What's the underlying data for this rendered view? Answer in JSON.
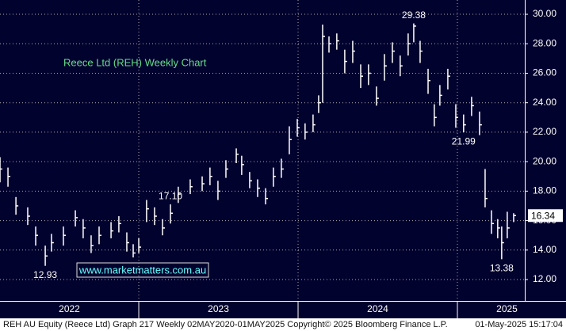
{
  "chart_data": {
    "type": "ohlc",
    "title": "Reece Ltd (REH) Weekly Chart",
    "watermark": "www.marketmatters.com.au",
    "footer_left": "REH AU Equity (Reece Ltd) Graph 217  Weekly 02MAY2020-01MAY2025  Copyright© 2025 Bloomberg Finance L.P.",
    "footer_right": "01-May-2025 15:17:04",
    "color": "#ffffff",
    "grid": true,
    "xlim": [
      2022.129,
      2025.423
    ],
    "xticks": [
      2022,
      2023,
      2024,
      2025
    ],
    "ylim": [
      10.55,
      30.97
    ],
    "yticks": [
      {
        "value": 12,
        "label": "12.00"
      },
      {
        "value": 14,
        "label": "14.00"
      },
      {
        "value": 16,
        "label": "16.00"
      },
      {
        "value": 18,
        "label": "18.00"
      },
      {
        "value": 20,
        "label": "20.00"
      },
      {
        "value": 22,
        "label": "22.00"
      },
      {
        "value": 24,
        "label": "24.00"
      },
      {
        "value": 26,
        "label": "26.00"
      },
      {
        "value": 28,
        "label": "28.00"
      },
      {
        "value": 30,
        "label": "30.00"
      }
    ],
    "x": [
      2022.129,
      2022.179,
      2022.229,
      2022.303,
      2022.353,
      2022.413,
      2022.452,
      2022.527,
      2022.602,
      2022.651,
      2022.701,
      2022.751,
      2022.826,
      2022.875,
      2022.925,
      2022.965,
      2023.0,
      2023.049,
      2023.099,
      2023.149,
      2023.199,
      2023.248,
      2023.323,
      2023.398,
      2023.447,
      2023.497,
      2023.547,
      2023.612,
      2023.646,
      2023.696,
      2023.746,
      2023.796,
      2023.845,
      2023.895,
      2023.945,
      2023.995,
      2024.044,
      2024.094,
      2024.129,
      2024.154,
      2024.194,
      2024.243,
      2024.293,
      2024.343,
      2024.393,
      2024.442,
      2024.492,
      2024.542,
      2024.592,
      2024.641,
      2024.691,
      2024.726,
      2024.766,
      2024.816,
      2024.855,
      2024.89,
      2024.94,
      2024.99,
      2025.039,
      2025.089,
      2025.139,
      2025.174,
      2025.214,
      2025.253,
      2025.278,
      2025.313,
      2025.353
    ],
    "high": [
      20.3,
      19.6,
      17.6,
      16.9,
      15.6,
      14.3,
      15.1,
      15.6,
      16.7,
      16.1,
      15.0,
      15.6,
      15.9,
      16.3,
      15.2,
      14.4,
      14.8,
      17.4,
      16.9,
      16.1,
      17.1,
      18.3,
      18.8,
      19.0,
      19.6,
      18.7,
      20.1,
      20.9,
      20.4,
      19.3,
      18.8,
      18.2,
      19.6,
      20.2,
      22.4,
      22.9,
      22.6,
      23.2,
      24.5,
      29.3,
      28.5,
      28.7,
      27.6,
      28.2,
      26.6,
      26.6,
      25.1,
      27.3,
      28.1,
      27.2,
      28.7,
      29.38,
      28.2,
      26.3,
      23.9,
      25.2,
      26.3,
      23.9,
      23.2,
      24.4,
      23.4,
      19.5,
      16.7,
      16.1,
      15.6,
      16.6,
      16.5
    ],
    "low": [
      18.6,
      18.3,
      16.4,
      15.7,
      14.3,
      12.93,
      13.9,
      14.3,
      15.6,
      14.8,
      13.8,
      14.4,
      14.8,
      15.2,
      13.9,
      13.5,
      13.8,
      15.9,
      15.7,
      15.0,
      15.8,
      17.2,
      17.8,
      18.0,
      18.4,
      17.4,
      18.9,
      19.9,
      19.1,
      18.2,
      17.6,
      17.1,
      18.3,
      18.9,
      20.5,
      21.7,
      21.5,
      22.0,
      23.3,
      24.0,
      27.4,
      27.6,
      26.0,
      26.7,
      25.0,
      25.2,
      23.8,
      25.5,
      26.7,
      25.8,
      27.2,
      28.1,
      26.7,
      24.6,
      22.4,
      23.8,
      24.9,
      22.3,
      21.99,
      23.1,
      21.8,
      16.9,
      15.1,
      14.8,
      13.38,
      14.8,
      15.9
    ],
    "close": [
      19.5,
      19,
      17,
      16.3,
      15,
      13.6,
      14.5,
      15,
      16.2,
      15.5,
      14.3,
      15,
      15.3,
      15.8,
      14.5,
      13.8,
      14.2,
      16.8,
      16.3,
      15.5,
      16.5,
      17.8,
      18.3,
      18.5,
      19.0,
      18.0,
      19.5,
      20.5,
      19.8,
      18.7,
      18.2,
      17.5,
      19.0,
      19.5,
      21.5,
      22.3,
      22.0,
      22.5,
      24,
      28.5,
      28.0,
      28.2,
      26.8,
      27.5,
      25.8,
      26,
      24.3,
      26.5,
      27.5,
      26.5,
      28,
      29.2,
      27.5,
      25.5,
      23,
      24.5,
      25.8,
      23,
      22.5,
      23.8,
      22.5,
      17.5,
      15.8,
      15.5,
      14.5,
      15.5,
      16.34
    ],
    "annotations": [
      {
        "value": 12.93,
        "label": "12.93"
      },
      {
        "value": 17.1,
        "label": "17.10"
      },
      {
        "value": 29.38,
        "label": "29.38"
      },
      {
        "value": 21.99,
        "label": "21.99"
      },
      {
        "value": 13.38,
        "label": "13.38"
      }
    ]
  }
}
